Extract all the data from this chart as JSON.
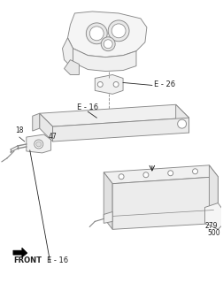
{
  "bg_color": "#ffffff",
  "line_color": "#888888",
  "dark_color": "#222222",
  "labels": {
    "E26": "E - 26",
    "E16_top": "E - 16",
    "E16_bot": "E - 16",
    "num47": "47",
    "num18": "18",
    "num279": "279",
    "num500": "500",
    "front": "FRONT"
  },
  "lw": 0.65,
  "label_fontsize": 5.5
}
